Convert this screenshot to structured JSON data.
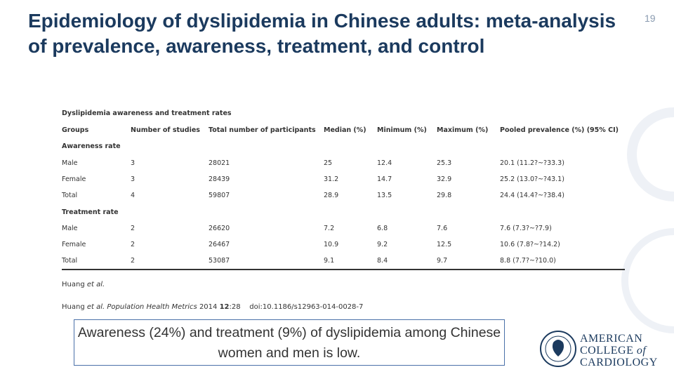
{
  "slide_number": "19",
  "title": "Epidemiology of dyslipidemia in Chinese adults: meta-analysis of prevalence, awareness, treatment, and control",
  "table": {
    "caption": "Dyslipidemia awareness and treatment rates",
    "header": [
      "Groups",
      "Number of studies",
      "Total number of participants",
      "Median (%)",
      "Minimum (%)",
      "Maximum (%)",
      "Pooled prevalence (%) (95% CI)"
    ],
    "sections": [
      {
        "label": "Awareness rate",
        "rows": [
          [
            "Male",
            3,
            28021,
            25,
            12.4,
            25.3,
            "20.1 (11.2?~?33.3)"
          ],
          [
            "Female",
            3,
            28439,
            31.2,
            14.7,
            32.9,
            "25.2 (13.0?~?43.1)"
          ],
          [
            "Total",
            4,
            59807,
            28.9,
            13.5,
            29.8,
            "24.4 (14.4?~?38.4)"
          ]
        ]
      },
      {
        "label": "Treatment rate",
        "rows": [
          [
            "Male",
            2,
            26620,
            7.2,
            6.8,
            7.6,
            "7.6 (7.3?~?7.9)"
          ],
          [
            "Female",
            2,
            26467,
            10.9,
            9.2,
            12.5,
            "10.6 (7.8?~?14.2)"
          ],
          [
            "Total",
            2,
            53087,
            9.1,
            8.4,
            9.7,
            "8.8 (7.7?~?10.0)"
          ]
        ]
      }
    ]
  },
  "citations": {
    "short": [
      "Huang ",
      "et al."
    ],
    "full": [
      "Huang ",
      "et al. Population Health Metrics",
      " 2014 ",
      "12",
      ":28    doi:10.1186/s12963-014-0028-7"
    ]
  },
  "callout": "Awareness (24%) and treatment (9%) of dyslipidemia among Chinese women and men is low.",
  "logo": {
    "line1": "AMERICAN",
    "line2": [
      "COLLEGE ",
      "of"
    ],
    "line3": "CARDIOLOGY"
  }
}
